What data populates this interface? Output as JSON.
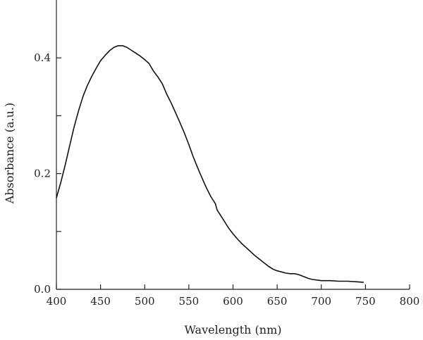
{
  "chart_data": {
    "type": "line",
    "title": "",
    "xlabel": "Wavelength (nm)",
    "ylabel": "Absorbance (a.u.)",
    "xlim": [
      400,
      800
    ],
    "ylim": [
      0,
      0.5
    ],
    "x_ticks": [
      400,
      450,
      500,
      550,
      600,
      650,
      700,
      750,
      800
    ],
    "x_tick_labels": [
      "400",
      "450",
      "500",
      "550",
      "600",
      "650",
      "700",
      "750",
      "800"
    ],
    "y_ticks": [
      0.0,
      0.2,
      0.4
    ],
    "y_tick_labels": [
      "0.0",
      "0.2",
      "0.4"
    ],
    "y_minor_ticks": [
      0.1,
      0.3
    ],
    "grid": false,
    "legend": "none",
    "series": [
      {
        "x": [
          400,
          405,
          410,
          415,
          420,
          425,
          430,
          435,
          440,
          445,
          450,
          455,
          460,
          465,
          470,
          475,
          480,
          485,
          490,
          495,
          500,
          505,
          510,
          515,
          520,
          525,
          530,
          535,
          540,
          545,
          550,
          555,
          560,
          565,
          570,
          575,
          580,
          582,
          585,
          590,
          595,
          600,
          605,
          610,
          615,
          620,
          625,
          630,
          635,
          640,
          645,
          650,
          655,
          660,
          665,
          670,
          675,
          680,
          685,
          690,
          695,
          700,
          710,
          720,
          730,
          740,
          748
        ],
        "y": [
          0.158,
          0.185,
          0.215,
          0.248,
          0.28,
          0.308,
          0.333,
          0.352,
          0.368,
          0.382,
          0.395,
          0.404,
          0.412,
          0.418,
          0.421,
          0.421,
          0.418,
          0.413,
          0.408,
          0.403,
          0.397,
          0.39,
          0.377,
          0.367,
          0.355,
          0.337,
          0.322,
          0.305,
          0.288,
          0.27,
          0.25,
          0.229,
          0.21,
          0.192,
          0.175,
          0.16,
          0.148,
          0.137,
          0.13,
          0.118,
          0.106,
          0.096,
          0.087,
          0.079,
          0.072,
          0.065,
          0.058,
          0.052,
          0.046,
          0.04,
          0.035,
          0.032,
          0.03,
          0.028,
          0.027,
          0.027,
          0.025,
          0.022,
          0.019,
          0.017,
          0.016,
          0.015,
          0.015,
          0.014,
          0.014,
          0.013,
          0.012
        ]
      }
    ]
  }
}
